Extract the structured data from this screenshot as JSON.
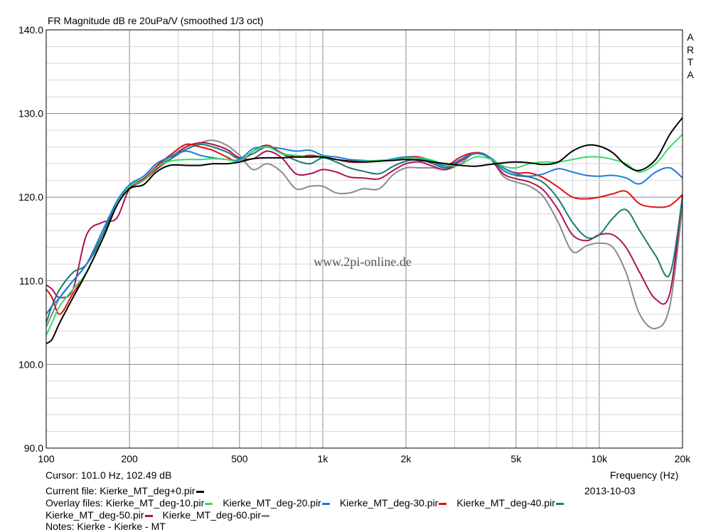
{
  "chart_data": {
    "type": "line",
    "title": "FR Magnitude dB re 20uPa/V (smoothed 1/3 oct)",
    "watermark": "www.2pi-online.de",
    "brand_letters": [
      "A",
      "R",
      "T",
      "A"
    ],
    "xlabel": "Frequency (Hz)",
    "ylabel": "",
    "xscale": "log",
    "xlim": [
      100,
      20000
    ],
    "ylim": [
      90,
      140
    ],
    "grid": true,
    "x_ticks": [
      {
        "value": 100,
        "label": "100"
      },
      {
        "value": 200,
        "label": "200"
      },
      {
        "value": 500,
        "label": "500"
      },
      {
        "value": 1000,
        "label": "1k"
      },
      {
        "value": 2000,
        "label": "2k"
      },
      {
        "value": 5000,
        "label": "5k"
      },
      {
        "value": 10000,
        "label": "10k"
      },
      {
        "value": 20000,
        "label": "20k"
      }
    ],
    "y_ticks": [
      {
        "value": 90,
        "label": "90.0"
      },
      {
        "value": 100,
        "label": "100.0"
      },
      {
        "value": 110,
        "label": "110.0"
      },
      {
        "value": 120,
        "label": "120.0"
      },
      {
        "value": 130,
        "label": "130.0"
      },
      {
        "value": 140,
        "label": "140.0"
      }
    ],
    "series": [
      {
        "name": "Kierke_MT_deg+0.pir",
        "color": "#000000",
        "x": [
          100,
          105,
          112,
          125,
          140,
          160,
          180,
          200,
          225,
          250,
          280,
          320,
          360,
          400,
          450,
          500,
          560,
          630,
          710,
          800,
          900,
          1000,
          1120,
          1250,
          1400,
          1600,
          1800,
          2000,
          2250,
          2500,
          2800,
          3150,
          3550,
          4000,
          4500,
          5000,
          5600,
          6300,
          7100,
          8000,
          9000,
          10000,
          11200,
          12500,
          14000,
          16000,
          18000,
          20000
        ],
        "y": [
          102.5,
          103,
          105,
          108,
          111,
          115,
          119,
          121,
          121.5,
          123,
          123.8,
          123.8,
          123.8,
          124,
          124,
          124.2,
          124.6,
          124.7,
          124.7,
          124.8,
          124.8,
          124.8,
          124.5,
          124.3,
          124.2,
          124.3,
          124.4,
          124.5,
          124.4,
          124.2,
          124,
          123.8,
          123.7,
          123.9,
          124.1,
          124.2,
          124.1,
          123.9,
          124.2,
          125.5,
          126.2,
          126.1,
          125.3,
          123.8,
          123.2,
          124.5,
          127.5,
          129.5
        ]
      },
      {
        "name": "Kierke_MT_deg-10.pir",
        "color": "#33dd66",
        "x": [
          100,
          105,
          112,
          125,
          140,
          160,
          180,
          200,
          225,
          250,
          280,
          320,
          360,
          400,
          450,
          500,
          560,
          630,
          710,
          800,
          900,
          1000,
          1120,
          1250,
          1400,
          1600,
          1800,
          2000,
          2250,
          2500,
          2800,
          3150,
          3550,
          4000,
          4500,
          5000,
          5600,
          6300,
          7100,
          8000,
          9000,
          10000,
          11200,
          12500,
          14000,
          16000,
          18000,
          20000
        ],
        "y": [
          103.5,
          105,
          107,
          109,
          111,
          115,
          119,
          121.3,
          122,
          123.5,
          124.3,
          124.5,
          124.5,
          124.6,
          124.5,
          124.3,
          125.5,
          126,
          125.2,
          125,
          124.8,
          124.9,
          124.5,
          124.3,
          124.3,
          124.4,
          124.5,
          124.6,
          124.7,
          124.4,
          123.8,
          123.9,
          124.8,
          124.6,
          123.7,
          123.5,
          124,
          124.2,
          124.2,
          124.5,
          124.8,
          124.8,
          124.5,
          124,
          123,
          124,
          126,
          127.5
        ]
      },
      {
        "name": "Kierke_MT_deg-20.pir",
        "color": "#1a7de0",
        "x": [
          100,
          105,
          112,
          125,
          140,
          160,
          180,
          200,
          225,
          250,
          280,
          320,
          360,
          400,
          450,
          500,
          560,
          630,
          710,
          800,
          900,
          1000,
          1120,
          1250,
          1400,
          1600,
          1800,
          2000,
          2250,
          2500,
          2800,
          3150,
          3550,
          4000,
          4500,
          5000,
          5600,
          6300,
          7100,
          8000,
          9000,
          10000,
          11200,
          12500,
          14000,
          16000,
          18000,
          20000
        ],
        "y": [
          106,
          107,
          108,
          110,
          112,
          116,
          119.5,
          121.5,
          122.5,
          124,
          124.8,
          125.5,
          125,
          124.7,
          124.5,
          124.5,
          125.8,
          126,
          125.8,
          125.5,
          125.6,
          125,
          124.8,
          124.5,
          124.4,
          124.3,
          124.6,
          124.8,
          124.6,
          124.2,
          123.7,
          124.5,
          125.2,
          124.8,
          123.5,
          122.8,
          122.5,
          122.8,
          123.4,
          123,
          122.6,
          122.5,
          122.6,
          122.3,
          121.6,
          123,
          123.5,
          122.3
        ]
      },
      {
        "name": "Kierke_MT_deg-30.pir",
        "color": "#e01010",
        "x": [
          100,
          105,
          112,
          125,
          140,
          160,
          180,
          200,
          225,
          250,
          280,
          320,
          360,
          400,
          450,
          500,
          560,
          630,
          710,
          800,
          900,
          1000,
          1120,
          1250,
          1400,
          1600,
          1800,
          2000,
          2250,
          2500,
          2800,
          3150,
          3550,
          4000,
          4500,
          5000,
          5600,
          6300,
          7100,
          8000,
          9000,
          10000,
          11200,
          12500,
          14000,
          16000,
          18000,
          20000
        ],
        "y": [
          109,
          108,
          106,
          108.5,
          111,
          115,
          119,
          121.2,
          122.2,
          123.7,
          125,
          126.3,
          126,
          125.6,
          124.8,
          124.2,
          125.5,
          126.2,
          125.3,
          124.8,
          125,
          124.8,
          124.5,
          124.2,
          124.2,
          124.3,
          124.5,
          124.8,
          124.8,
          124.3,
          123.8,
          124.8,
          125.3,
          124.8,
          123.5,
          122.9,
          122.9,
          122.3,
          121.2,
          120,
          119.8,
          120,
          120.4,
          120.7,
          119.2,
          118.8,
          119,
          120.3
        ]
      },
      {
        "name": "Kierke_MT_deg-40.pir",
        "color": "#1a7a6e",
        "x": [
          100,
          105,
          112,
          125,
          140,
          160,
          180,
          200,
          225,
          250,
          280,
          320,
          360,
          400,
          450,
          500,
          560,
          630,
          710,
          800,
          900,
          1000,
          1120,
          1250,
          1400,
          1600,
          1800,
          2000,
          2250,
          2500,
          2800,
          3150,
          3550,
          4000,
          4500,
          5000,
          5600,
          6300,
          7100,
          8000,
          9000,
          10000,
          11200,
          12500,
          14000,
          16000,
          18000,
          20000
        ],
        "y": [
          105,
          107,
          109,
          111,
          112,
          115.5,
          119.5,
          121.3,
          122.2,
          123.5,
          124.5,
          125.7,
          126.3,
          126,
          125.4,
          124.6,
          125.2,
          126,
          125.2,
          124.4,
          124,
          124.7,
          124.2,
          123.5,
          123.1,
          122.8,
          123.7,
          124.3,
          124.5,
          124,
          123.5,
          124.5,
          125.3,
          124.8,
          123.2,
          122.6,
          122.4,
          121.7,
          119.8,
          117,
          115.2,
          115.5,
          117.5,
          118.5,
          116,
          113,
          110.8,
          120
        ]
      },
      {
        "name": "Kierke_MT_deg-50.pir",
        "color": "#b0105a",
        "x": [
          100,
          105,
          112,
          125,
          140,
          160,
          180,
          200,
          225,
          250,
          280,
          320,
          360,
          400,
          450,
          500,
          560,
          630,
          710,
          800,
          900,
          1000,
          1120,
          1250,
          1400,
          1600,
          1800,
          2000,
          2250,
          2500,
          2800,
          3150,
          3550,
          4000,
          4500,
          5000,
          5600,
          6300,
          7100,
          8000,
          9000,
          10000,
          11200,
          12500,
          14000,
          16000,
          18000,
          20000
        ],
        "y": [
          109.5,
          109,
          108,
          109,
          115.5,
          117,
          117.5,
          121,
          122,
          123.3,
          124.5,
          126,
          126.5,
          126.3,
          125.7,
          124.7,
          124.6,
          125.5,
          124.7,
          122.8,
          122.8,
          123.3,
          123,
          122.4,
          122.3,
          122.2,
          123.2,
          124,
          124.2,
          123.7,
          123.3,
          124.3,
          125.2,
          124.7,
          122.8,
          122.2,
          121.8,
          120.8,
          118.5,
          115.5,
          114.8,
          115.5,
          115.5,
          114,
          111,
          107.8,
          108.5,
          120.2
        ]
      },
      {
        "name": "Kierke_MT_deg-60.pir",
        "color": "#8a8a8a",
        "x": [
          100,
          105,
          112,
          125,
          140,
          160,
          180,
          200,
          225,
          250,
          280,
          320,
          360,
          400,
          450,
          500,
          560,
          630,
          710,
          800,
          900,
          1000,
          1120,
          1250,
          1400,
          1600,
          1800,
          2000,
          2250,
          2500,
          2800,
          3150,
          3550,
          4000,
          4500,
          5000,
          5600,
          6300,
          7100,
          8000,
          9000,
          10000,
          11200,
          12500,
          14000,
          16000,
          18000,
          20000
        ],
        "y": [
          104.5,
          106,
          108,
          110,
          112,
          115,
          119,
          121,
          122,
          123.5,
          124.8,
          126,
          126.5,
          126.8,
          126.2,
          125,
          123.3,
          124,
          123,
          121,
          121.3,
          121.3,
          120.5,
          120.5,
          121,
          121,
          122.7,
          123.5,
          123.5,
          123.5,
          123.3,
          124,
          125.3,
          124.8,
          122.5,
          121.8,
          121.3,
          120,
          117,
          113.5,
          114.2,
          114.5,
          114,
          111,
          106,
          104.3,
          107,
          119
        ]
      }
    ]
  },
  "cursor_readout": "Cursor: 101.0 Hz, 102.49 dB",
  "current_file_label": "Current file: Kierke_MT_deg+0.pir",
  "overlay_label": "Overlay files:",
  "date": "2013-10-03",
  "bottom_cut_text": "Notes: Kierke - Kierke - MT"
}
